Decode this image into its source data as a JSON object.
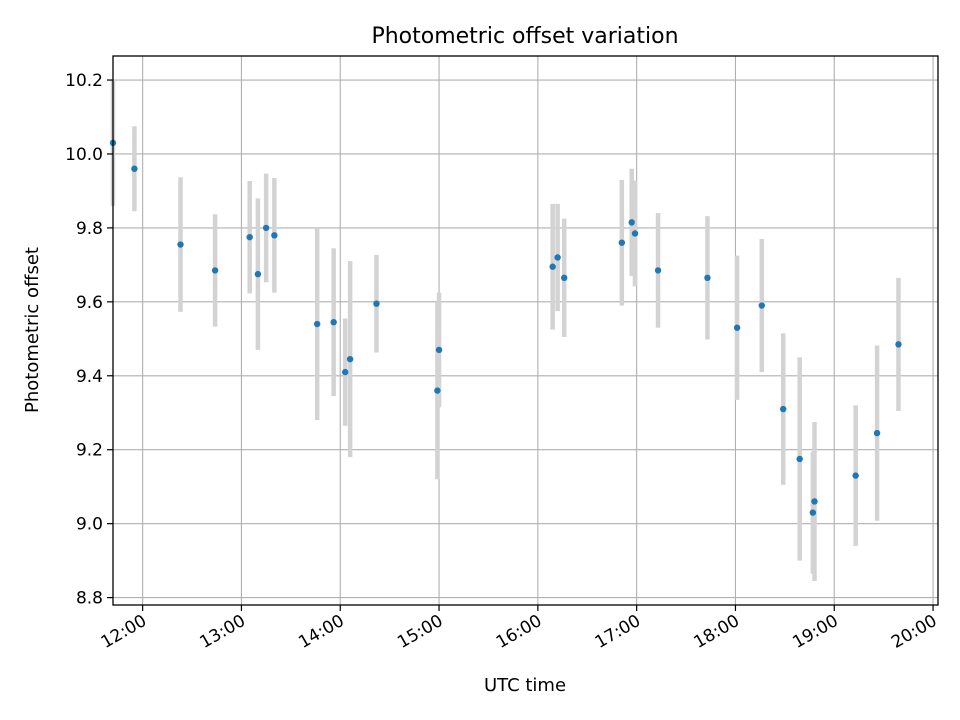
{
  "chart_data": {
    "type": "scatter",
    "title": "Photometric offset variation",
    "xlabel": "UTC time",
    "ylabel": "Photometric offset",
    "x_ticks": [
      "12:00",
      "13:00",
      "14:00",
      "15:00",
      "16:00",
      "17:00",
      "18:00",
      "19:00",
      "20:00"
    ],
    "y_ticks": [
      "8.8",
      "9.0",
      "9.2",
      "9.4",
      "9.6",
      "9.8",
      "10.0",
      "10.2"
    ],
    "xlim": [
      "11:42",
      "20:03"
    ],
    "ylim": [
      8.78,
      10.265
    ],
    "grid": true,
    "colors": {
      "point": "#1f77b4",
      "error_bar": "#d3d3d3"
    },
    "series": [
      {
        "points": [
          {
            "x": "11:42",
            "y": 10.03,
            "err": 0.17
          },
          {
            "x": "11:55",
            "y": 9.96,
            "err": 0.115
          },
          {
            "x": "12:23",
            "y": 9.755,
            "err": 0.182
          },
          {
            "x": "12:44",
            "y": 9.685,
            "err": 0.152
          },
          {
            "x": "13:05",
            "y": 9.775,
            "err": 0.152
          },
          {
            "x": "13:10",
            "y": 9.675,
            "err": 0.205
          },
          {
            "x": "13:15",
            "y": 9.8,
            "err": 0.147
          },
          {
            "x": "13:20",
            "y": 9.78,
            "err": 0.155
          },
          {
            "x": "13:46",
            "y": 9.54,
            "err": 0.26
          },
          {
            "x": "13:56",
            "y": 9.545,
            "err": 0.2
          },
          {
            "x": "14:03",
            "y": 9.41,
            "err": 0.145
          },
          {
            "x": "14:06",
            "y": 9.445,
            "err": 0.265
          },
          {
            "x": "14:22",
            "y": 9.595,
            "err": 0.132
          },
          {
            "x": "14:59",
            "y": 9.36,
            "err": 0.24
          },
          {
            "x": "15:00",
            "y": 9.47,
            "err": 0.155
          },
          {
            "x": "16:09",
            "y": 9.695,
            "err": 0.17
          },
          {
            "x": "16:12",
            "y": 9.72,
            "err": 0.145
          },
          {
            "x": "16:16",
            "y": 9.665,
            "err": 0.16
          },
          {
            "x": "16:51",
            "y": 9.76,
            "err": 0.17
          },
          {
            "x": "16:57",
            "y": 9.815,
            "err": 0.145
          },
          {
            "x": "16:59",
            "y": 9.785,
            "err": 0.143
          },
          {
            "x": "17:13",
            "y": 9.685,
            "err": 0.155
          },
          {
            "x": "17:43",
            "y": 9.665,
            "err": 0.167
          },
          {
            "x": "18:01",
            "y": 9.53,
            "err": 0.195
          },
          {
            "x": "18:16",
            "y": 9.59,
            "err": 0.18
          },
          {
            "x": "18:29",
            "y": 9.31,
            "err": 0.205
          },
          {
            "x": "18:39",
            "y": 9.175,
            "err": 0.275
          },
          {
            "x": "18:47",
            "y": 9.03,
            "err": 0.165
          },
          {
            "x": "18:48",
            "y": 9.06,
            "err": 0.215
          },
          {
            "x": "19:13",
            "y": 9.13,
            "err": 0.19
          },
          {
            "x": "19:26",
            "y": 9.245,
            "err": 0.237
          },
          {
            "x": "19:39",
            "y": 9.485,
            "err": 0.18
          }
        ]
      }
    ]
  }
}
